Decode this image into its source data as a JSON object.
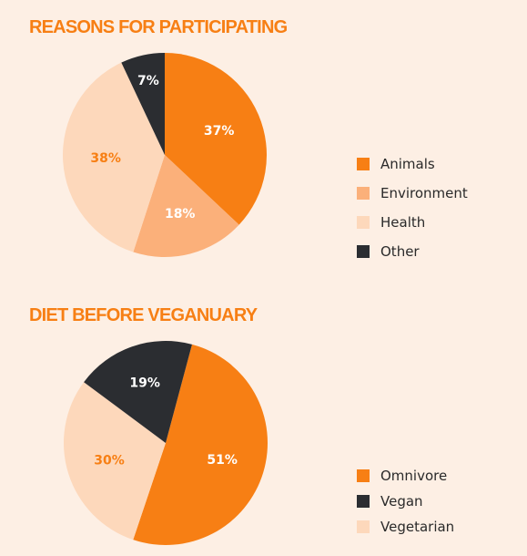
{
  "chart_data": [
    {
      "type": "pie",
      "title": "REASONS FOR PARTICIPATING",
      "categories": [
        "Animals",
        "Environment",
        "Health",
        "Other"
      ],
      "values": [
        37,
        18,
        38,
        7
      ],
      "labels": [
        "37%",
        "18%",
        "38%",
        "7%"
      ],
      "colors": [
        "#f77f14",
        "#fbb07a",
        "#fdd8bb",
        "#2b2d31"
      ],
      "label_colors": [
        "#ffffff",
        "#ffffff",
        "#f77f14",
        "#ffffff"
      ],
      "start_angle_deg": 0,
      "direction": "clockwise",
      "legend": "right"
    },
    {
      "type": "pie",
      "title": "DIET BEFORE VEGANUARY",
      "categories": [
        "Omnivore",
        "Vegan",
        "Vegetarian"
      ],
      "values": [
        51,
        19,
        30
      ],
      "labels": [
        "51%",
        "19%",
        "30%"
      ],
      "colors": [
        "#f77f14",
        "#2b2d31",
        "#fdd8bb"
      ],
      "label_colors": [
        "#ffffff",
        "#ffffff",
        "#f77f14"
      ],
      "slice_order": [
        "Omnivore",
        "Vegetarian",
        "Vegan"
      ],
      "start_angle_deg": 15,
      "direction": "clockwise",
      "legend": "bottom-right"
    }
  ]
}
